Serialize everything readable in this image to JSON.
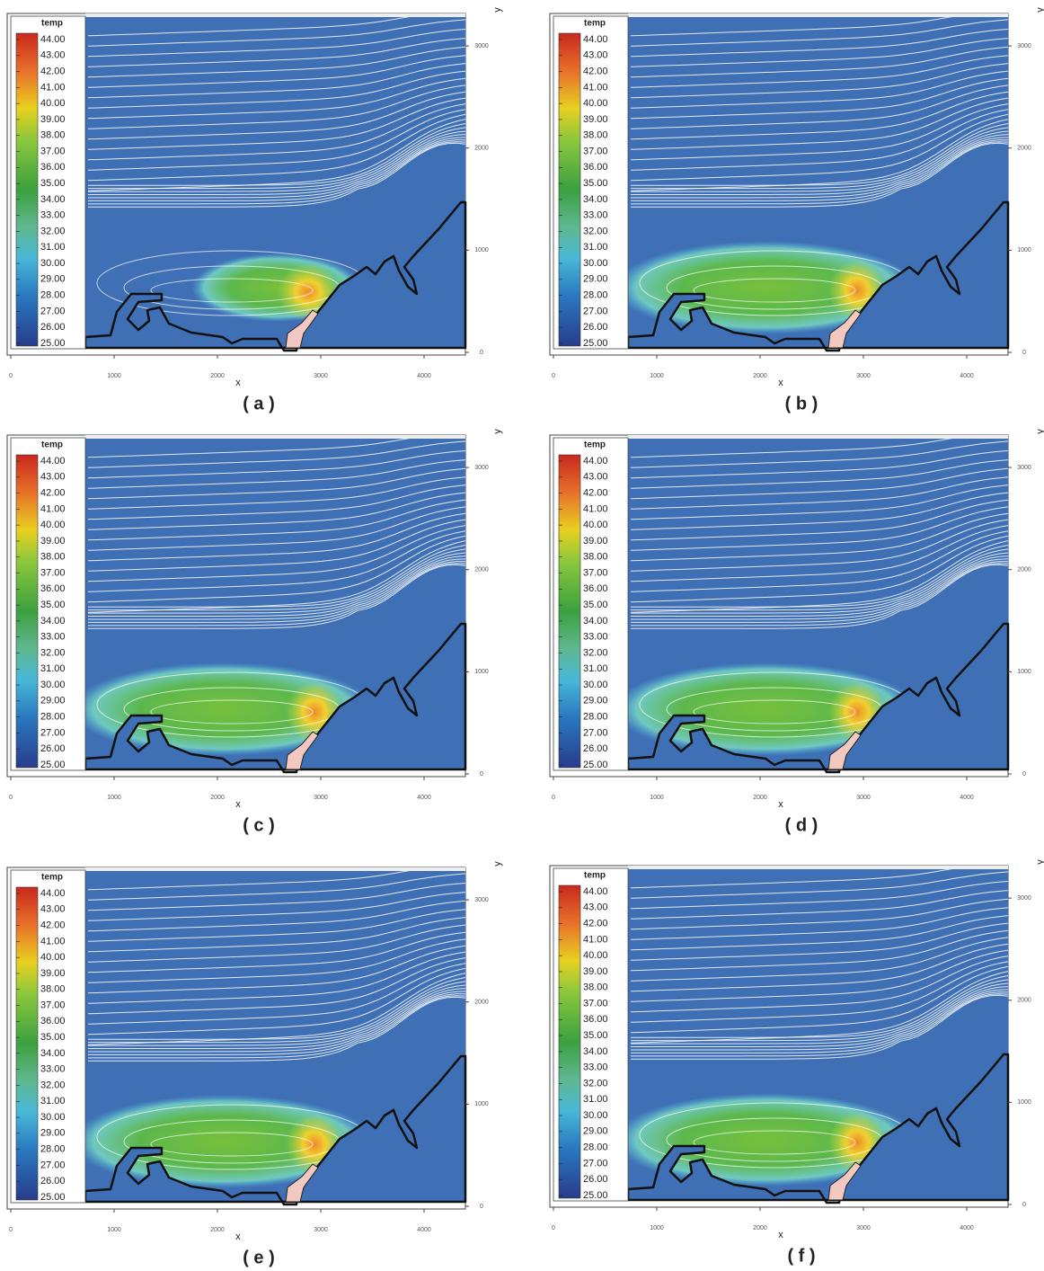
{
  "panels": [
    {
      "label": "( a )",
      "colorbar": {
        "title": "temp",
        "labels": [
          "44.00",
          "43.00",
          "42.00",
          "41.00",
          "40.00",
          "39.00",
          "38.00",
          "37.00",
          "36.00",
          "35.00",
          "34.00",
          "33.00",
          "32.00",
          "31.00",
          "30.00",
          "29.00",
          "28.00",
          "27.00",
          "26.00",
          "25.00"
        ]
      },
      "x_axis": {
        "label": "x",
        "lim": [
          0,
          4400
        ],
        "ticks": [
          0,
          1000,
          2000,
          3000,
          4000
        ]
      },
      "y_axis": {
        "label": "y",
        "lim": [
          0,
          3300
        ],
        "ticks": [
          0,
          1000,
          2000,
          3000
        ]
      }
    },
    {
      "label": "( b )",
      "colorbar": {
        "title": "temp",
        "labels": [
          "44.00",
          "43.00",
          "42.00",
          "41.00",
          "40.00",
          "39.00",
          "38.00",
          "37.00",
          "36.00",
          "35.00",
          "34.00",
          "33.00",
          "32.00",
          "31.00",
          "30.00",
          "29.00",
          "28.00",
          "27.00",
          "26.00",
          "25.00"
        ]
      },
      "x_axis": {
        "label": "x",
        "lim": [
          0,
          4400
        ],
        "ticks": [
          0,
          1000,
          2000,
          3000,
          4000
        ]
      },
      "y_axis": {
        "label": "y",
        "lim": [
          0,
          3300
        ],
        "ticks": [
          0,
          1000,
          2000,
          3000
        ]
      }
    },
    {
      "label": "( c )",
      "colorbar": {
        "title": "temp",
        "labels": [
          "44.00",
          "43.00",
          "42.00",
          "41.00",
          "40.00",
          "39.00",
          "38.00",
          "37.00",
          "36.00",
          "35.00",
          "34.00",
          "33.00",
          "32.00",
          "31.00",
          "30.00",
          "29.00",
          "28.00",
          "27.00",
          "26.00",
          "25.00"
        ]
      },
      "x_axis": {
        "label": "x",
        "lim": [
          0,
          4400
        ],
        "ticks": [
          0,
          1000,
          2000,
          3000,
          4000
        ]
      },
      "y_axis": {
        "label": "y",
        "lim": [
          0,
          3300
        ],
        "ticks": [
          0,
          1000,
          2000,
          3000
        ]
      }
    },
    {
      "label": "( d )",
      "colorbar": {
        "title": "temp",
        "labels": [
          "44.00",
          "43.00",
          "42.00",
          "41.00",
          "40.00",
          "39.00",
          "38.00",
          "37.00",
          "36.00",
          "35.00",
          "34.00",
          "33.00",
          "32.00",
          "31.00",
          "30.00",
          "29.00",
          "28.00",
          "27.00",
          "26.00",
          "25.00"
        ]
      },
      "x_axis": {
        "label": "x",
        "lim": [
          0,
          4400
        ],
        "ticks": [
          0,
          1000,
          2000,
          3000,
          4000
        ]
      },
      "y_axis": {
        "label": "y",
        "lim": [
          0,
          3300
        ],
        "ticks": [
          0,
          1000,
          2000,
          3000
        ]
      }
    },
    {
      "label": "( e )",
      "colorbar": {
        "title": "temp",
        "labels": [
          "44.00",
          "43.00",
          "42.00",
          "41.00",
          "40.00",
          "39.00",
          "38.00",
          "37.00",
          "36.00",
          "35.00",
          "34.00",
          "33.00",
          "32.00",
          "31.00",
          "30.00",
          "29.00",
          "28.00",
          "27.00",
          "26.00",
          "25.00"
        ]
      },
      "x_axis": {
        "label": "x",
        "lim": [
          0,
          4400
        ],
        "ticks": [
          0,
          1000,
          2000,
          3000,
          4000
        ]
      },
      "y_axis": {
        "label": "y",
        "lim": [
          0,
          3300
        ],
        "ticks": [
          0,
          1000,
          2000,
          3000
        ]
      }
    },
    {
      "label": "( f )",
      "colorbar": {
        "title": "temp",
        "labels": [
          "44.00",
          "43.00",
          "42.00",
          "41.00",
          "40.00",
          "39.00",
          "38.00",
          "37.00",
          "36.00",
          "35.00",
          "34.00",
          "33.00",
          "32.00",
          "31.00",
          "30.00",
          "29.00",
          "28.00",
          "27.00",
          "26.00",
          "25.00"
        ]
      },
      "x_axis": {
        "label": "x",
        "lim": [
          0,
          4400
        ],
        "ticks": [
          0,
          1000,
          2000,
          3000,
          4000
        ]
      },
      "y_axis": {
        "label": "y",
        "lim": [
          0,
          3300
        ],
        "ticks": [
          0,
          1000,
          2000,
          3000
        ]
      }
    }
  ]
}
